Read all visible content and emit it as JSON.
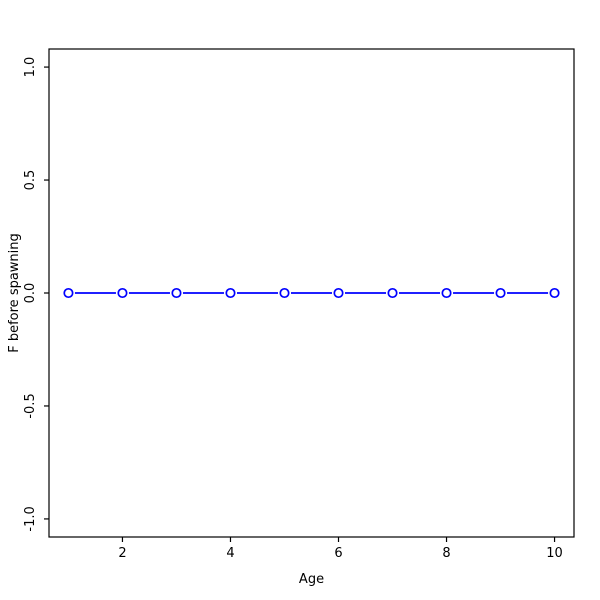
{
  "chart_data": {
    "type": "line",
    "title": "",
    "xlabel": "Age",
    "ylabel": "F before spawning",
    "x": [
      1,
      2,
      3,
      4,
      5,
      6,
      7,
      8,
      9,
      10
    ],
    "series": [
      {
        "name": "F before spawning",
        "values": [
          0.0,
          0.0,
          0.0,
          0.0,
          0.0,
          0.0,
          0.0,
          0.0,
          0.0,
          0.0
        ]
      }
    ],
    "xlim": [
      1,
      10
    ],
    "ylim": [
      -1.0,
      1.0
    ],
    "x_ticks": [
      2,
      4,
      6,
      8,
      10
    ],
    "x_tick_labels": [
      "2",
      "4",
      "6",
      "8",
      "10"
    ],
    "y_ticks": [
      -1.0,
      -0.5,
      0.0,
      0.5,
      1.0
    ],
    "y_tick_labels": [
      "-1.0",
      "-0.5",
      "0.0",
      "0.5",
      "1.0"
    ],
    "grid": "off",
    "legend": "none",
    "marker": "open-circle",
    "line_color": "#0000ff",
    "marker_fill": "#ffffff",
    "axis_color": "#000000",
    "background_color": "#ffffff"
  }
}
